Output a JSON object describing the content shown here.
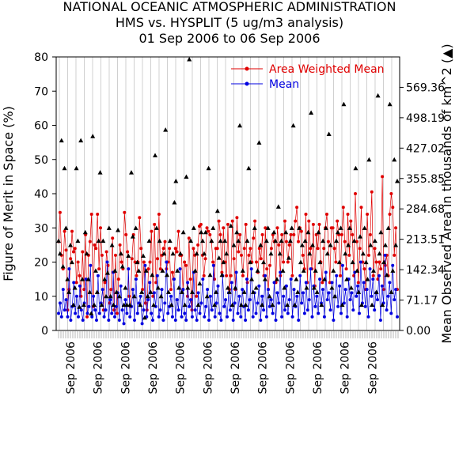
{
  "chart_data": {
    "type": "scatter",
    "title_lines": [
      "NATIONAL OCEANIC ATMOSPHERIC ADMINISTRATION",
      "HMS vs. HYSPLIT (5 ug/m3 analysis)",
      "01 Sep 2006 to 06 Sep 2006"
    ],
    "ylabel": "Figure of Merit in Space (%)",
    "y2label": "Mean Observed Area in thousands of km^2 (▲)",
    "ylim": [
      0,
      80
    ],
    "y2lim": [
      0,
      640.53
    ],
    "y_ticks": [
      "0",
      "10",
      "20",
      "30",
      "40",
      "50",
      "60",
      "70",
      "80"
    ],
    "y2_ticks": [
      "0.00",
      "71.17",
      "142.34",
      "213.51",
      "284.68",
      "355.85",
      "427.02",
      "498.19",
      "569.36"
    ],
    "x_tick_labels": [
      "Sep 2006",
      "Sep 2006",
      "Sep 2006",
      "Sep 2006",
      "Sep 2006",
      "Sep 2006",
      "Sep 2006",
      "Sep 2006",
      "Sep 2006",
      "Sep 2006",
      "Sep 2006",
      "Sep 2006"
    ],
    "series_colors": {
      "area_weighted_mean": "#e00000",
      "mean": "#0000e0",
      "area": "#000000"
    },
    "series": [
      {
        "name": "Area Weighted Mean",
        "values": [
          26,
          34.5,
          22,
          18,
          29,
          23.5,
          6,
          12,
          21,
          29,
          23,
          24,
          14,
          20,
          16,
          10,
          23,
          12,
          28,
          4,
          22,
          26,
          34,
          7,
          25,
          24,
          34,
          18,
          30,
          22,
          6,
          14,
          23,
          19,
          8,
          12,
          27,
          6,
          22,
          5,
          15,
          25,
          20,
          18,
          34.5,
          28,
          23,
          10,
          7,
          21,
          28,
          20,
          16,
          20,
          33,
          24,
          12,
          20,
          8,
          6,
          18,
          20,
          29,
          10,
          31,
          14,
          21,
          34,
          18,
          22,
          24,
          26,
          18,
          20,
          24,
          12,
          17,
          15,
          24,
          23,
          29,
          22,
          22,
          12,
          20,
          19,
          10,
          27,
          15,
          6,
          24,
          22,
          10,
          25,
          30.5,
          31,
          22,
          16,
          21,
          30,
          29,
          28,
          26,
          20,
          15,
          24,
          24,
          32,
          28,
          17,
          30,
          20,
          16,
          31,
          12,
          16,
          32,
          21,
          12,
          33,
          23,
          28,
          22,
          16,
          24,
          31,
          14,
          22,
          24,
          20,
          27,
          32,
          20,
          17,
          24,
          21,
          28,
          16,
          30,
          18,
          12,
          19,
          24,
          28,
          26,
          14,
          30,
          25,
          16,
          28,
          20,
          32,
          26,
          20,
          25,
          28,
          16,
          28,
          32,
          36,
          26,
          30,
          29,
          22,
          18,
          34,
          14,
          32,
          24,
          18,
          31,
          13,
          28,
          24,
          31,
          20,
          14,
          24,
          30,
          34,
          26,
          14,
          30,
          30,
          24,
          20,
          32,
          28,
          16,
          28,
          36,
          26,
          18,
          34,
          22,
          32,
          28,
          16,
          40,
          26,
          14,
          24,
          36,
          20,
          18,
          12,
          34,
          22,
          28,
          40.5,
          16,
          24,
          20,
          15,
          20,
          18,
          45,
          12,
          19,
          22,
          16,
          34,
          40,
          36,
          22,
          30,
          12
        ]
      },
      {
        "name": "Mean",
        "values": [
          5,
          8,
          4,
          12,
          6,
          9,
          4,
          18,
          3,
          7,
          14,
          5,
          10,
          4,
          13,
          6,
          3,
          8,
          15,
          5,
          7,
          19,
          4,
          10,
          6,
          3,
          16,
          5,
          8,
          12,
          4,
          6,
          20,
          3,
          9,
          5,
          17,
          4,
          7,
          11,
          3,
          13,
          6,
          2,
          9,
          5,
          18,
          4,
          7,
          12,
          3,
          15,
          5,
          8,
          10,
          2,
          6,
          19,
          4,
          9,
          14,
          5,
          3,
          11,
          7,
          16,
          4,
          6,
          12,
          3,
          8,
          20,
          5,
          7,
          10,
          4,
          15,
          3,
          9,
          6,
          18,
          4,
          12,
          5,
          3,
          14,
          7,
          9,
          4,
          17,
          6,
          3,
          11,
          5,
          8,
          15,
          4,
          7,
          12,
          3,
          10,
          6,
          19,
          4,
          8,
          13,
          5,
          3,
          16,
          7,
          9,
          4,
          11,
          6,
          14,
          3,
          8,
          17,
          5,
          10,
          4,
          12,
          7,
          3,
          15,
          6,
          9,
          18,
          4,
          11,
          5,
          8,
          13,
          3,
          10,
          6,
          16,
          4,
          12,
          7,
          9,
          5,
          14,
          3,
          11,
          8,
          17,
          4,
          10,
          6,
          13,
          5,
          9,
          15,
          4,
          12,
          7,
          10,
          3,
          16,
          8,
          11,
          5,
          14,
          6,
          9,
          18,
          4,
          13,
          7,
          10,
          5,
          15,
          8,
          12,
          4,
          17,
          9,
          11,
          6,
          14,
          3,
          10,
          16,
          7,
          13,
          5,
          19,
          8,
          12,
          4,
          15,
          9,
          11,
          6,
          17,
          10,
          13,
          5,
          20,
          8,
          14,
          7,
          12,
          4,
          18,
          10,
          15,
          6,
          11,
          9,
          16,
          3,
          13,
          8,
          22,
          6,
          10,
          14,
          5,
          19,
          9,
          12,
          4
        ]
      },
      {
        "name": "Area",
        "values": [
          210,
          180,
          445,
          150,
          380,
          240,
          120,
          90,
          200,
          160,
          60,
          100,
          380,
          210,
          55,
          445,
          120,
          60,
          230,
          180,
          120,
          90,
          40,
          455,
          60,
          140,
          90,
          210,
          370,
          60,
          210,
          120,
          80,
          135,
          240,
          80,
          200,
          60,
          140,
          90,
          235,
          80,
          180,
          150,
          60,
          100,
          60,
          175,
          60,
          370,
          220,
          80,
          240,
          160,
          140,
          60,
          90,
          175,
          30,
          140,
          80,
          210,
          90,
          130,
          60,
          410,
          240,
          100,
          210,
          80,
          140,
          180,
          470,
          130,
          90,
          210,
          60,
          180,
          300,
          350,
          140,
          100,
          180,
          90,
          230,
          60,
          360,
          100,
          640,
          210,
          90,
          240,
          140,
          180,
          60,
          110,
          230,
          210,
          180,
          230,
          80,
          380,
          130,
          210,
          240,
          60,
          90,
          280,
          170,
          210,
          130,
          160,
          210,
          180,
          100,
          90,
          245,
          60,
          200,
          100,
          230,
          210,
          480,
          60,
          140,
          90,
          60,
          210,
          380,
          160,
          120,
          90,
          240,
          100,
          140,
          440,
          200,
          60,
          160,
          120,
          210,
          240,
          80,
          180,
          60,
          230,
          210,
          120,
          290,
          180,
          210,
          140,
          100,
          230,
          60,
          170,
          210,
          240,
          480,
          60,
          120,
          90,
          240,
          160,
          200,
          140,
          210,
          100,
          230,
          180,
          510,
          200,
          100,
          140,
          90,
          230,
          160,
          60,
          210,
          120,
          240,
          180,
          460,
          200,
          100,
          140,
          80,
          210,
          230,
          160,
          240,
          60,
          530,
          180,
          120,
          200,
          240,
          100,
          160,
          210,
          380,
          140,
          90,
          220,
          60,
          180,
          240,
          160,
          120,
          400,
          200,
          60,
          140,
          210,
          90,
          550,
          180,
          230,
          60,
          160,
          200,
          130,
          240,
          530,
          90,
          140,
          400,
          200,
          350
        ]
      }
    ]
  }
}
